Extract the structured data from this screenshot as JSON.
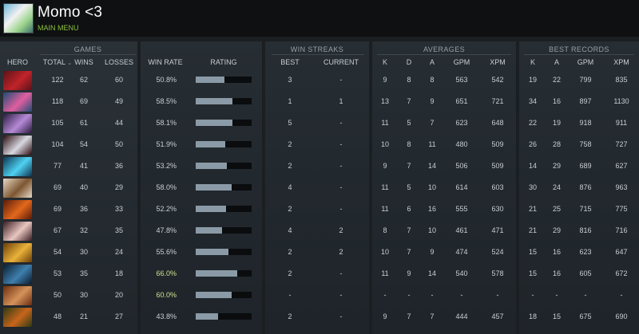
{
  "header": {
    "title": "Momo <3",
    "menu_link": "MAIN MENU"
  },
  "groups": {
    "games": "GAMES",
    "win_streaks": "WIN STREAKS",
    "averages": "AVERAGES",
    "best_records": "BEST RECORDS"
  },
  "columns": {
    "hero": "HERO",
    "total": "TOTAL",
    "sort_arrow": "⌄",
    "wins": "WINS",
    "losses": "LOSSES",
    "win_rate": "WIN RATE",
    "rating": "RATING",
    "best": "BEST",
    "current": "CURRENT",
    "k": "K",
    "d": "D",
    "a": "A",
    "gpm": "GPM",
    "xpm": "XPM",
    "best_k": "K",
    "best_a": "A",
    "best_gpm": "GPM",
    "best_xpm": "XPM"
  },
  "colors": {
    "accent_green": "#8dbf3f",
    "highlight_winrate": "#cfe08f",
    "normal_text": "#c9ced2",
    "rating_fill": "#8a9aa6"
  },
  "rows": [
    {
      "hero_icon": "hero-portrait-icon",
      "hero_colors": [
        "#5a1218",
        "#c1242a"
      ],
      "total": "122",
      "wins": "62",
      "losses": "60",
      "win_rate": "50.8%",
      "rating": 0.52,
      "best": "3",
      "current": "-",
      "k": "9",
      "d": "8",
      "a": "8",
      "gpm": "563",
      "xpm": "542",
      "best_k": "19",
      "best_a": "22",
      "best_gpm": "799",
      "best_xpm": "835"
    },
    {
      "hero_icon": "hero-portrait-icon",
      "hero_colors": [
        "#1f4d75",
        "#e05ea0"
      ],
      "total": "118",
      "wins": "69",
      "losses": "49",
      "win_rate": "58.5%",
      "rating": 0.66,
      "best": "1",
      "current": "1",
      "k": "13",
      "d": "7",
      "a": "9",
      "gpm": "651",
      "xpm": "721",
      "best_k": "34",
      "best_a": "16",
      "best_gpm": "897",
      "best_xpm": "1130"
    },
    {
      "hero_icon": "hero-portrait-icon",
      "hero_colors": [
        "#2a1b3f",
        "#b58ad6"
      ],
      "total": "105",
      "wins": "61",
      "losses": "44",
      "win_rate": "58.1%",
      "rating": 0.66,
      "best": "5",
      "current": "-",
      "k": "11",
      "d": "5",
      "a": "7",
      "gpm": "623",
      "xpm": "648",
      "best_k": "22",
      "best_a": "19",
      "best_gpm": "918",
      "best_xpm": "911"
    },
    {
      "hero_icon": "hero-portrait-icon",
      "hero_colors": [
        "#2c0d10",
        "#d8d8e0"
      ],
      "total": "104",
      "wins": "54",
      "losses": "50",
      "win_rate": "51.9%",
      "rating": 0.53,
      "best": "2",
      "current": "-",
      "k": "10",
      "d": "8",
      "a": "11",
      "gpm": "480",
      "xpm": "509",
      "best_k": "26",
      "best_a": "28",
      "best_gpm": "758",
      "best_xpm": "727"
    },
    {
      "hero_icon": "hero-portrait-icon",
      "hero_colors": [
        "#0d3550",
        "#4fd1f2"
      ],
      "total": "77",
      "wins": "41",
      "losses": "36",
      "win_rate": "53.2%",
      "rating": 0.56,
      "best": "2",
      "current": "-",
      "k": "9",
      "d": "7",
      "a": "14",
      "gpm": "506",
      "xpm": "509",
      "best_k": "14",
      "best_a": "29",
      "best_gpm": "689",
      "best_xpm": "627"
    },
    {
      "hero_icon": "hero-portrait-icon",
      "hero_colors": [
        "#e6d9c6",
        "#7d5631"
      ],
      "total": "69",
      "wins": "40",
      "losses": "29",
      "win_rate": "58.0%",
      "rating": 0.64,
      "best": "4",
      "current": "-",
      "k": "11",
      "d": "5",
      "a": "10",
      "gpm": "614",
      "xpm": "603",
      "best_k": "30",
      "best_a": "24",
      "best_gpm": "876",
      "best_xpm": "963"
    },
    {
      "hero_icon": "hero-portrait-icon",
      "hero_colors": [
        "#5a1a08",
        "#e2681c"
      ],
      "total": "69",
      "wins": "36",
      "losses": "33",
      "win_rate": "52.2%",
      "rating": 0.54,
      "best": "2",
      "current": "-",
      "k": "11",
      "d": "6",
      "a": "16",
      "gpm": "555",
      "xpm": "630",
      "best_k": "21",
      "best_a": "25",
      "best_gpm": "715",
      "best_xpm": "775"
    },
    {
      "hero_icon": "hero-portrait-icon",
      "hero_colors": [
        "#3b1d22",
        "#e8c6c0"
      ],
      "total": "67",
      "wins": "32",
      "losses": "35",
      "win_rate": "47.8%",
      "rating": 0.47,
      "best": "4",
      "current": "2",
      "k": "8",
      "d": "7",
      "a": "10",
      "gpm": "461",
      "xpm": "471",
      "best_k": "21",
      "best_a": "29",
      "best_gpm": "816",
      "best_xpm": "716"
    },
    {
      "hero_icon": "hero-portrait-icon",
      "hero_colors": [
        "#6a3d08",
        "#e9b23a"
      ],
      "total": "54",
      "wins": "30",
      "losses": "24",
      "win_rate": "55.6%",
      "rating": 0.59,
      "best": "2",
      "current": "2",
      "k": "10",
      "d": "7",
      "a": "9",
      "gpm": "474",
      "xpm": "524",
      "best_k": "15",
      "best_a": "16",
      "best_gpm": "623",
      "best_xpm": "647"
    },
    {
      "hero_icon": "hero-portrait-icon",
      "hero_colors": [
        "#0b1d2e",
        "#3f7fae"
      ],
      "total": "53",
      "wins": "35",
      "losses": "18",
      "win_rate": "66.0%",
      "rating": 0.74,
      "best": "2",
      "current": "-",
      "k": "11",
      "d": "9",
      "a": "14",
      "gpm": "540",
      "xpm": "578",
      "best_k": "15",
      "best_a": "16",
      "best_gpm": "605",
      "best_xpm": "672"
    },
    {
      "hero_icon": "hero-portrait-icon",
      "hero_colors": [
        "#6b2e10",
        "#d5925a"
      ],
      "total": "50",
      "wins": "30",
      "losses": "20",
      "win_rate": "60.0%",
      "rating": 0.64,
      "best": "-",
      "current": "-",
      "k": "-",
      "d": "-",
      "a": "-",
      "gpm": "-",
      "xpm": "-",
      "best_k": "-",
      "best_a": "-",
      "best_gpm": "-",
      "best_xpm": "-"
    },
    {
      "hero_icon": "hero-portrait-icon",
      "hero_colors": [
        "#2c3a12",
        "#c8651c"
      ],
      "total": "48",
      "wins": "21",
      "losses": "27",
      "win_rate": "43.8%",
      "rating": 0.4,
      "best": "2",
      "current": "-",
      "k": "9",
      "d": "7",
      "a": "7",
      "gpm": "444",
      "xpm": "457",
      "best_k": "18",
      "best_a": "15",
      "best_gpm": "675",
      "best_xpm": "690"
    }
  ]
}
